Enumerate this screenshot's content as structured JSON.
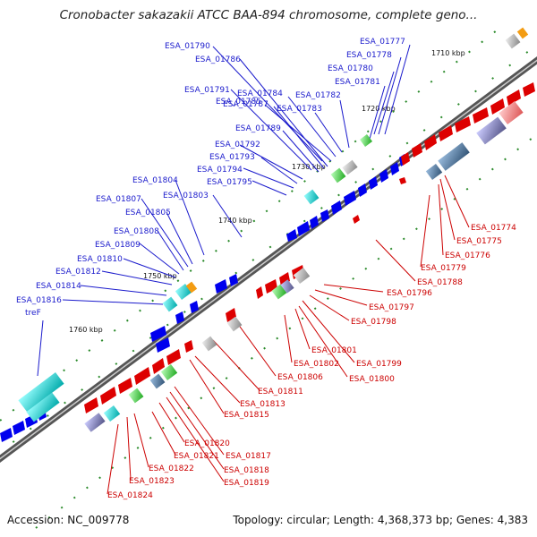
{
  "title": "Cronobacter sakazakii ATCC BAA-894 chromosome, complete geno...",
  "footer": {
    "accession": "Accession: NC_009778",
    "summary": "Topology: circular; Length: 4,368,373 bp; Genes: 4,383"
  },
  "colors": {
    "forward_gene": "#0000ee",
    "reverse_gene": "#dd0000",
    "forward_label": "#1a1acc",
    "reverse_label": "#cc0000",
    "backbone": "#777777",
    "tick": "#2a8a2a"
  },
  "kbp_labels": [
    {
      "label": "1710 kbp"
    },
    {
      "label": "1720 kbp"
    },
    {
      "label": "1730 kbp"
    },
    {
      "label": "1740 kbp"
    },
    {
      "label": "1750 kbp"
    },
    {
      "label": "1760 kbp"
    }
  ],
  "forward_labels": [
    "ESA_01777",
    "ESA_01778",
    "ESA_01780",
    "ESA_01781",
    "ESA_01782",
    "ESA_01783",
    "ESA_01784",
    "ESA_01785",
    "ESA_01786",
    "ESA_01787",
    "ESA_01789",
    "ESA_01790",
    "ESA_01791",
    "ESA_01792",
    "ESA_01793",
    "ESA_01794",
    "ESA_01795",
    "ESA_01803",
    "ESA_01804",
    "ESA_01805",
    "ESA_01807",
    "ESA_01808",
    "ESA_01809",
    "ESA_01810",
    "ESA_01812",
    "ESA_01814",
    "ESA_01816",
    "treF"
  ],
  "reverse_labels": [
    "ESA_01774",
    "ESA_01775",
    "ESA_01776",
    "ESA_01779",
    "ESA_01788",
    "ESA_01796",
    "ESA_01797",
    "ESA_01798",
    "ESA_01799",
    "ESA_01800",
    "ESA_01801",
    "ESA_01802",
    "ESA_01806",
    "ESA_01811",
    "ESA_01813",
    "ESA_01815",
    "ESA_01817",
    "ESA_01818",
    "ESA_01819",
    "ESA_01820",
    "ESA_01821",
    "ESA_01822",
    "ESA_01823",
    "ESA_01824"
  ]
}
